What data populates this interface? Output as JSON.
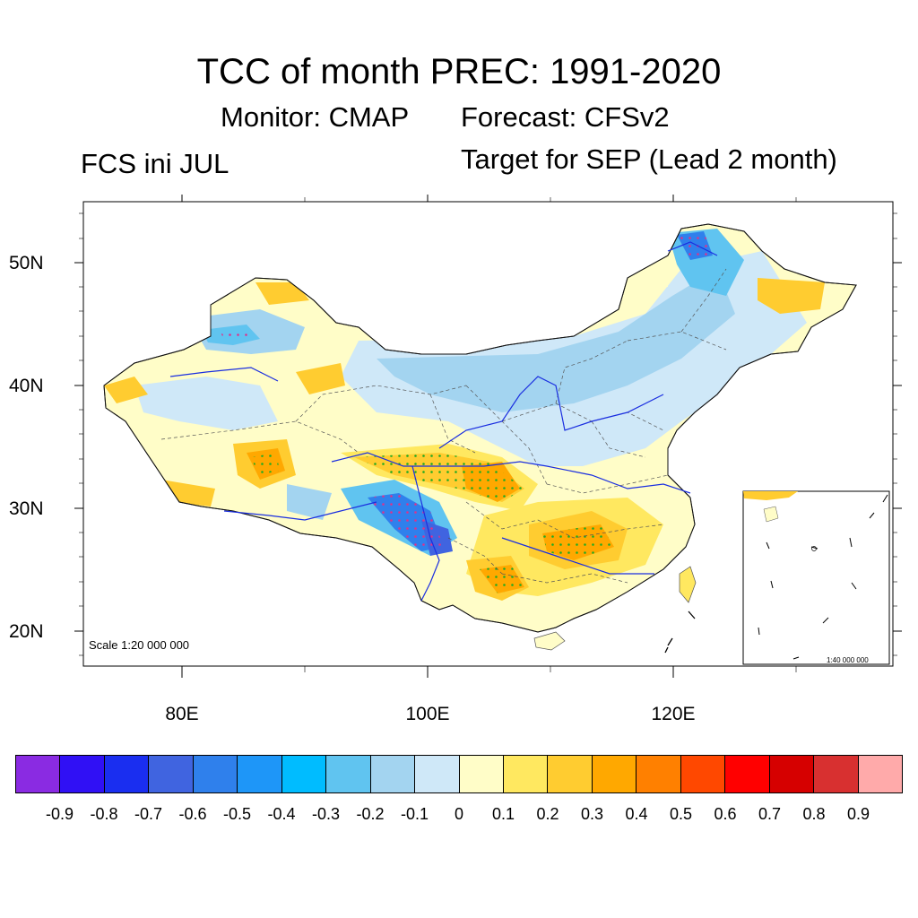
{
  "title": "TCC of month PREC: 1991-2020",
  "monitor": "Monitor: CMAP",
  "forecast": "Forecast: CFSv2",
  "left_subtitle": "FCS ini JUL",
  "target": "Target for SEP (Lead 2 month)",
  "map": {
    "lat_labels": [
      "50N",
      "40N",
      "30N",
      "20N"
    ],
    "lon_labels": [
      "80E",
      "100E",
      "120E"
    ],
    "scale_main": "Scale 1:20 000 000",
    "scale_inset": "1:40 000 000"
  },
  "colorbar": {
    "colors": [
      "#8a2be2",
      "#3010f5",
      "#1a2ef0",
      "#4064e0",
      "#2f80ec",
      "#1e96f8",
      "#00bcff",
      "#60c4f0",
      "#a3d4f0",
      "#cfe8f8",
      "#fffdc8",
      "#ffe860",
      "#ffcc30",
      "#ffa800",
      "#ff8000",
      "#ff4800",
      "#ff0000",
      "#d60000",
      "#d83030",
      "#ffaaaa"
    ],
    "labels": [
      "-0.9",
      "-0.8",
      "-0.7",
      "-0.6",
      "-0.5",
      "-0.4",
      "-0.3",
      "-0.2",
      "-0.1",
      "0",
      "0.1",
      "0.2",
      "0.3",
      "0.4",
      "0.5",
      "0.6",
      "0.7",
      "0.8",
      "0.9"
    ]
  }
}
